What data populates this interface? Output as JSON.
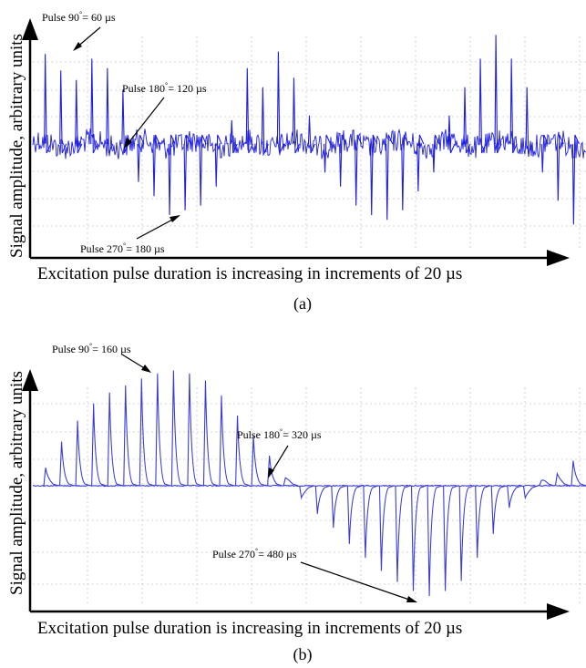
{
  "figure": {
    "panels": [
      {
        "id": "a",
        "caption": "(a)",
        "xlabel": "Excitation pulse duration is increasing in increments of 20 µs",
        "ylabel": "Signal amplitude, arbitrary units",
        "annotations": [
          {
            "text": "Pulse 90",
            "sup": "°",
            "rest": "= 60 µs"
          },
          {
            "text": "Pulse 180",
            "sup": "°",
            "rest": "= 120 µs"
          },
          {
            "text": "Pulse 270",
            "sup": "°",
            "rest": "= 180 µs"
          }
        ]
      },
      {
        "id": "b",
        "caption": "(b)",
        "xlabel": "Excitation pulse duration is increasing in increments of 20 µs",
        "ylabel": "Signal amplitude, arbitrary units",
        "annotations": [
          {
            "text": "Pulse 90",
            "sup": "°",
            "rest": "= 160 µs"
          },
          {
            "text": "Pulse 180",
            "sup": "°",
            "rest": "= 320 µs"
          },
          {
            "text": "Pulse 270",
            "sup": "°",
            "rest": "= 480 µs"
          }
        ]
      }
    ]
  },
  "chart_data": [
    {
      "type": "line",
      "panel": "a",
      "color": "#1f1fe0",
      "grid": true,
      "baseline": 0,
      "noise": "high",
      "pulses": [
        {
          "t": 1,
          "peak": 1.9
        },
        {
          "t": 2,
          "peak": 1.55
        },
        {
          "t": 3,
          "peak": 1.35
        },
        {
          "t": 4,
          "peak": 1.8
        },
        {
          "t": 5,
          "peak": 1.6
        },
        {
          "t": 6,
          "peak": 1.15
        },
        {
          "t": 7,
          "peak": -0.8
        },
        {
          "t": 8,
          "peak": -1.1
        },
        {
          "t": 9,
          "peak": -1.5
        },
        {
          "t": 10,
          "peak": -1.4
        },
        {
          "t": 11,
          "peak": -1.3
        },
        {
          "t": 12,
          "peak": -0.9
        },
        {
          "t": 13,
          "peak": 0.5
        },
        {
          "t": 14,
          "peak": 1.6
        },
        {
          "t": 15,
          "peak": 1.2
        },
        {
          "t": 16,
          "peak": 1.95
        },
        {
          "t": 17,
          "peak": 1.4
        },
        {
          "t": 18,
          "peak": 0.6
        },
        {
          "t": 19,
          "peak": -0.6
        },
        {
          "t": 20,
          "peak": -0.9
        },
        {
          "t": 21,
          "peak": -1.3
        },
        {
          "t": 22,
          "peak": -1.5
        },
        {
          "t": 23,
          "peak": -1.6
        },
        {
          "t": 24,
          "peak": -1.4
        },
        {
          "t": 25,
          "peak": -1.0
        },
        {
          "t": 26,
          "peak": -0.6
        },
        {
          "t": 27,
          "peak": 0.6
        },
        {
          "t": 28,
          "peak": 1.2
        },
        {
          "t": 29,
          "peak": 1.8
        },
        {
          "t": 30,
          "peak": 2.3
        },
        {
          "t": 31,
          "peak": 1.8
        },
        {
          "t": 32,
          "peak": 1.2
        },
        {
          "t": 33,
          "peak": -0.6
        },
        {
          "t": 34,
          "peak": -1.2
        },
        {
          "t": 35,
          "peak": -1.7
        }
      ]
    },
    {
      "type": "line",
      "panel": "b",
      "color": "#3b3bd8",
      "grid": true,
      "baseline": 0,
      "noise": "low",
      "pulses": [
        {
          "t": 1,
          "peak": 0.18
        },
        {
          "t": 2,
          "peak": 0.44
        },
        {
          "t": 3,
          "peak": 0.65
        },
        {
          "t": 4,
          "peak": 0.82
        },
        {
          "t": 5,
          "peak": 0.93
        },
        {
          "t": 6,
          "peak": 1.0
        },
        {
          "t": 7,
          "peak": 1.07
        },
        {
          "t": 8,
          "peak": 1.12
        },
        {
          "t": 9,
          "peak": 1.15
        },
        {
          "t": 10,
          "peak": 1.12
        },
        {
          "t": 11,
          "peak": 1.05
        },
        {
          "t": 12,
          "peak": 0.9
        },
        {
          "t": 13,
          "peak": 0.7
        },
        {
          "t": 14,
          "peak": 0.5
        },
        {
          "t": 15,
          "peak": 0.3
        },
        {
          "t": 16,
          "peak": 0.08
        },
        {
          "t": 17,
          "peak": -0.12
        },
        {
          "t": 18,
          "peak": -0.28
        },
        {
          "t": 19,
          "peak": -0.42
        },
        {
          "t": 20,
          "peak": -0.58
        },
        {
          "t": 21,
          "peak": -0.72
        },
        {
          "t": 22,
          "peak": -0.85
        },
        {
          "t": 23,
          "peak": -0.96
        },
        {
          "t": 24,
          "peak": -1.05
        },
        {
          "t": 25,
          "peak": -1.1
        },
        {
          "t": 26,
          "peak": -1.05
        },
        {
          "t": 27,
          "peak": -0.95
        },
        {
          "t": 28,
          "peak": -0.72
        },
        {
          "t": 29,
          "peak": -0.48
        },
        {
          "t": 30,
          "peak": -0.22
        },
        {
          "t": 31,
          "peak": -0.12
        },
        {
          "t": 32,
          "peak": 0.05
        },
        {
          "t": 33,
          "peak": 0.12
        },
        {
          "t": 34,
          "peak": 0.25
        }
      ]
    }
  ]
}
